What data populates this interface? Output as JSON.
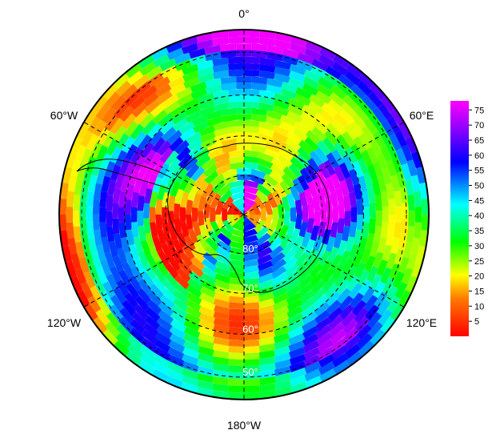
{
  "map": {
    "projection": "south-polar-stereographic",
    "grid": true,
    "lon_labels": [
      {
        "lon": 0,
        "text": "0°"
      },
      {
        "lon": -60,
        "text": "60°W"
      },
      {
        "lon": 60,
        "text": "60°E"
      },
      {
        "lon": -120,
        "text": "120°W"
      },
      {
        "lon": 120,
        "text": "120°E"
      },
      {
        "lon": 180,
        "text": "180°W"
      }
    ],
    "lat_labels": [
      {
        "lat": -80,
        "text": "80°"
      },
      {
        "lat": -70,
        "text": "70°"
      },
      {
        "lat": -60,
        "text": "60°"
      },
      {
        "lat": -50,
        "text": "50°"
      }
    ],
    "lat_circles": [
      -80,
      -70,
      -60,
      -50
    ],
    "meridians": [
      0,
      60,
      120,
      180,
      240,
      300
    ]
  },
  "colorbar": {
    "min": 0,
    "max": 78,
    "ticks": [
      5,
      10,
      15,
      20,
      25,
      30,
      35,
      40,
      45,
      50,
      55,
      60,
      65,
      70,
      75
    ],
    "colors": [
      "#ff0000",
      "#ff7a00",
      "#ffff00",
      "#00ff00",
      "#00ffff",
      "#0000ff",
      "#ff00ff"
    ]
  },
  "chart_data": {
    "type": "heatmap",
    "grid_description": "polar grid of values 0–78 over the Southern Ocean and Antarctica",
    "colorbar_range": [
      0,
      78
    ],
    "colorbar_ticks": [
      5,
      10,
      15,
      20,
      25,
      30,
      35,
      40,
      45,
      50,
      55,
      60,
      65,
      70,
      75
    ]
  }
}
